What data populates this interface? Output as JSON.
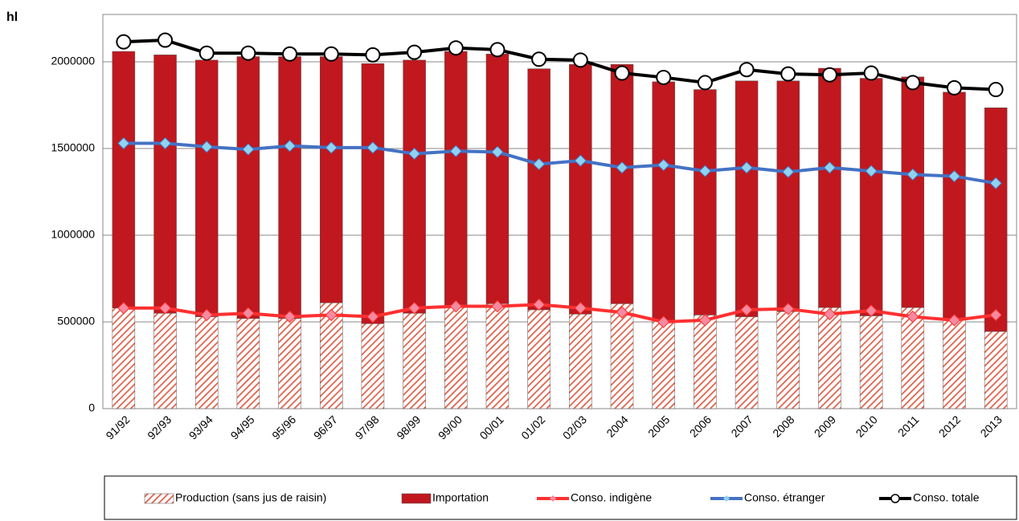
{
  "chart_data": {
    "type": "bar",
    "stacked": true,
    "y_label": "hl",
    "categories": [
      "91/92",
      "92/93",
      "93/94",
      "94/95",
      "95/96",
      "96/97",
      "97/98",
      "98/99",
      "99/00",
      "00/01",
      "01/02",
      "02/03",
      "2004",
      "2005",
      "2006",
      "2007",
      "2008",
      "2009",
      "2010",
      "2011",
      "2012",
      "2013"
    ],
    "series": [
      {
        "name": "Production (sans jus de raisin)",
        "type": "bar",
        "pattern": "hatch",
        "color": "#e0604a",
        "values": [
          580000,
          550000,
          530000,
          520000,
          520000,
          610000,
          490000,
          550000,
          590000,
          605000,
          570000,
          545000,
          605000,
          505000,
          540000,
          530000,
          560000,
          583000,
          535000,
          583000,
          515000,
          445000
        ]
      },
      {
        "name": "Importation",
        "type": "bar",
        "color": "#c0181e",
        "values": [
          1480000,
          1490000,
          1480000,
          1510000,
          1510000,
          1420000,
          1500000,
          1460000,
          1470000,
          1440000,
          1390000,
          1440000,
          1380000,
          1380000,
          1300000,
          1360000,
          1330000,
          1380000,
          1370000,
          1330000,
          1310000,
          1290000
        ]
      },
      {
        "name": "Conso. indigène",
        "type": "line",
        "color": "#ff3030",
        "marker": "diamond",
        "marker_color": "#f58aa0",
        "values": [
          580000,
          580000,
          540000,
          550000,
          530000,
          540000,
          530000,
          580000,
          590000,
          590000,
          600000,
          580000,
          555000,
          500000,
          510000,
          570000,
          575000,
          545000,
          565000,
          530000,
          510000,
          540000
        ]
      },
      {
        "name": "Conso. étranger",
        "type": "line",
        "color": "#4472c4",
        "marker": "diamond",
        "marker_color": "#8fd3f0",
        "values": [
          1530000,
          1530000,
          1510000,
          1495000,
          1515000,
          1505000,
          1505000,
          1470000,
          1485000,
          1480000,
          1410000,
          1430000,
          1390000,
          1405000,
          1370000,
          1390000,
          1365000,
          1390000,
          1370000,
          1350000,
          1340000,
          1300000
        ]
      },
      {
        "name": "Conso. totale",
        "type": "line",
        "color": "#000000",
        "marker": "circle",
        "marker_color": "#ffffff",
        "values": [
          2115000,
          2125000,
          2050000,
          2050000,
          2045000,
          2045000,
          2040000,
          2055000,
          2080000,
          2070000,
          2015000,
          2010000,
          1935000,
          1910000,
          1880000,
          1955000,
          1930000,
          1925000,
          1935000,
          1880000,
          1850000,
          1840000
        ]
      }
    ],
    "ylim": [
      0,
      2250000
    ],
    "yticks": [
      0,
      500000,
      1000000,
      1500000,
      2000000
    ],
    "grid": true,
    "legend": "bottom"
  }
}
